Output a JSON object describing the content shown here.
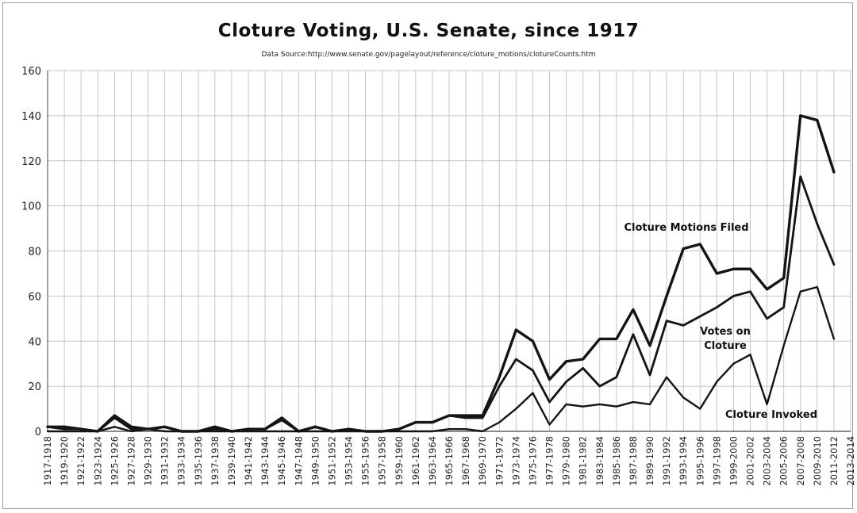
{
  "chart_data": {
    "type": "line",
    "title": "Cloture Voting, U.S. Senate, since 1917",
    "subtitle": "Data Source:http://www.senate.gov/pagelayout/reference/cloture_motions/clotureCounts.htm",
    "xlabel": "",
    "ylabel": "",
    "ylim": [
      0,
      160
    ],
    "yticks": [
      0,
      20,
      40,
      60,
      80,
      100,
      120,
      140,
      160
    ],
    "grid": true,
    "categories": [
      "1917-1918",
      "1919-1920",
      "1921-1922",
      "1923-1924",
      "1925-1926",
      "1927-1928",
      "1929-1930",
      "1931-1932",
      "1933-1934",
      "1935-1936",
      "1937-1938",
      "1939-1940",
      "1941-1942",
      "1943-1944",
      "1945-1946",
      "1947-1948",
      "1949-1950",
      "1951-1952",
      "1953-1954",
      "1955-1956",
      "1957-1958",
      "1959-1960",
      "1961-1962",
      "1963-1964",
      "1965-1966",
      "1967-1968",
      "1969-1970",
      "1971-1972",
      "1973-1974",
      "1975-1976",
      "1977-1978",
      "1979-1980",
      "1981-1982",
      "1983-1984",
      "1985-1986",
      "1987-1988",
      "1989-1990",
      "1991-1992",
      "1993-1994",
      "1995-1996",
      "1997-1998",
      "1999-2000",
      "2001-2002",
      "2003-2004",
      "2005-2006",
      "2007-2008",
      "2009-2010",
      "2011-2012",
      "2013-2014"
    ],
    "series": [
      {
        "name": "Cloture Motions Filed",
        "values": [
          2,
          2,
          1,
          0,
          7,
          2,
          1,
          2,
          0,
          0,
          2,
          0,
          1,
          1,
          6,
          0,
          2,
          0,
          1,
          0,
          0,
          1,
          4,
          4,
          7,
          7,
          7,
          24,
          45,
          40,
          23,
          31,
          32,
          41,
          41,
          54,
          38,
          60,
          81,
          83,
          70,
          72,
          72,
          63,
          68,
          140,
          138,
          115,
          null
        ]
      },
      {
        "name": "Votes on Cloture",
        "values": [
          2,
          1,
          1,
          0,
          6,
          1,
          1,
          2,
          0,
          0,
          1,
          0,
          1,
          1,
          5,
          0,
          2,
          0,
          1,
          0,
          0,
          1,
          4,
          4,
          7,
          6,
          6,
          20,
          32,
          27,
          13,
          22,
          28,
          20,
          24,
          43,
          25,
          49,
          47,
          51,
          55,
          60,
          62,
          50,
          55,
          113,
          92,
          74,
          null
        ]
      },
      {
        "name": "Cloture Invoked",
        "values": [
          0,
          0,
          0,
          0,
          2,
          0,
          1,
          0,
          0,
          0,
          0,
          0,
          0,
          0,
          0,
          0,
          0,
          0,
          0,
          0,
          0,
          0,
          0,
          0,
          1,
          1,
          0,
          4,
          10,
          17,
          3,
          12,
          11,
          12,
          11,
          13,
          12,
          24,
          15,
          10,
          22,
          30,
          34,
          12,
          38,
          62,
          64,
          41,
          null
        ]
      }
    ],
    "annotations": [
      {
        "text": "Cloture Motions Filed",
        "series": 0
      },
      {
        "text": "Votes on",
        "series": 1
      },
      {
        "text": "Cloture",
        "series": 1
      },
      {
        "text": "Cloture Invoked",
        "series": 2
      }
    ],
    "colors": {
      "line": "#141414",
      "grid": "#c4c4c4",
      "axis": "#444444"
    }
  }
}
